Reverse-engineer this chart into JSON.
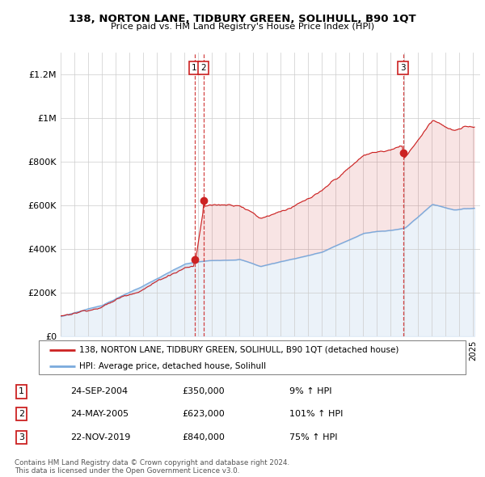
{
  "title": "138, NORTON LANE, TIDBURY GREEN, SOLIHULL, B90 1QT",
  "subtitle": "Price paid vs. HM Land Registry's House Price Index (HPI)",
  "legend_property": "138, NORTON LANE, TIDBURY GREEN, SOLIHULL, B90 1QT (detached house)",
  "legend_hpi": "HPI: Average price, detached house, Solihull",
  "footer_line1": "Contains HM Land Registry data © Crown copyright and database right 2024.",
  "footer_line2": "This data is licensed under the Open Government Licence v3.0.",
  "transactions": [
    {
      "num": 1,
      "date": "24-SEP-2004",
      "price": "£350,000",
      "pct": "9% ↑ HPI",
      "year": 2004.73,
      "value": 350000
    },
    {
      "num": 2,
      "date": "24-MAY-2005",
      "price": "£623,000",
      "pct": "101% ↑ HPI",
      "year": 2005.39,
      "value": 623000
    },
    {
      "num": 3,
      "date": "22-NOV-2019",
      "price": "£840,000",
      "pct": "75% ↑ HPI",
      "year": 2019.89,
      "value": 840000
    }
  ],
  "hpi_color": "#7aaadd",
  "property_color": "#cc2222",
  "background_color": "#ffffff",
  "grid_color": "#cccccc",
  "ylim": [
    0,
    1300000
  ],
  "xlim_start": 1995,
  "xlim_end": 2025.5
}
